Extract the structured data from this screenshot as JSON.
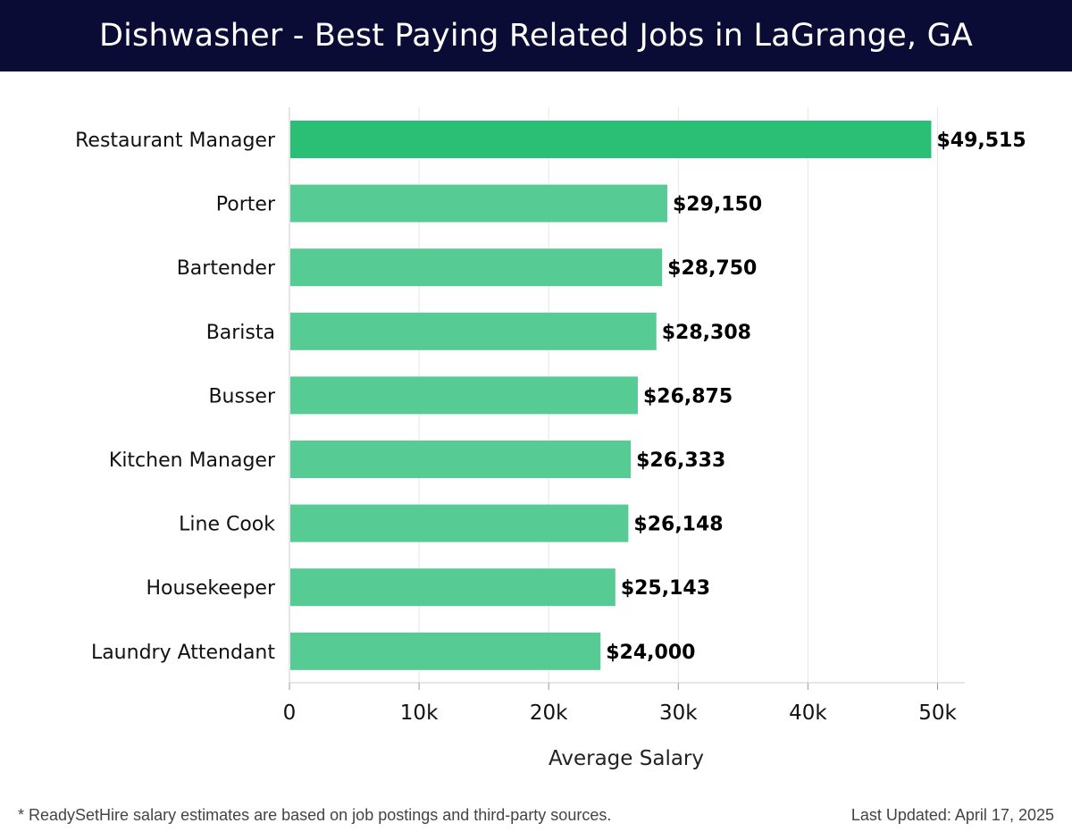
{
  "header": {
    "title": "Dishwasher - Best Paying Related Jobs in LaGrange, GA"
  },
  "chart_data": {
    "type": "bar",
    "orientation": "horizontal",
    "title": "Dishwasher - Best Paying Related Jobs in LaGrange, GA",
    "xlabel": "Average Salary",
    "ylabel": "",
    "xlim": [
      0,
      52000
    ],
    "xticks": [
      0,
      10000,
      20000,
      30000,
      40000,
      50000
    ],
    "xtick_labels": [
      "0",
      "10k",
      "20k",
      "30k",
      "40k",
      "50k"
    ],
    "grid": true,
    "categories": [
      "Restaurant Manager",
      "Porter",
      "Bartender",
      "Barista",
      "Busser",
      "Kitchen Manager",
      "Line Cook",
      "Housekeeper",
      "Laundry Attendant"
    ],
    "values": [
      49515,
      29150,
      28750,
      28308,
      26875,
      26333,
      26148,
      25143,
      24000
    ],
    "value_labels": [
      "$49,515",
      "$29,150",
      "$28,750",
      "$28,308",
      "$26,875",
      "$26,333",
      "$26,148",
      "$25,143",
      "$24,000"
    ],
    "colors": {
      "highlight_bar": "#2bbf76",
      "bar": "#56cb93",
      "grid": "#e6e6e6",
      "axis": "#cccccc"
    }
  },
  "footer": {
    "note": "* ReadySetHire salary estimates are based on job postings and third-party sources.",
    "updated": "Last Updated: April 17, 2025"
  }
}
